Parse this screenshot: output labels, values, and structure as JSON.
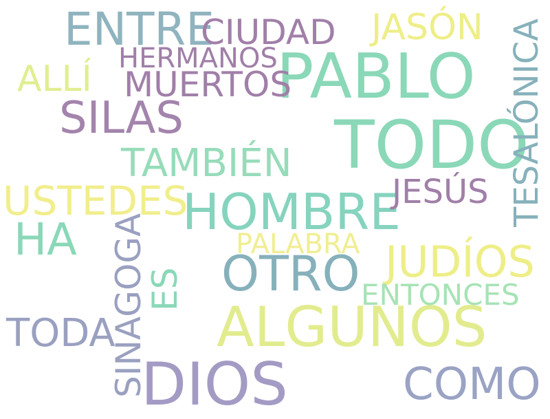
{
  "words": {
    "pablo": "PABLO",
    "todo": "TODO",
    "algunos": "ALGUNOS",
    "dios": "DIOS",
    "entre": "ENTRE",
    "hombre": "HOMBRE",
    "silas": "SILAS",
    "otro": "OTRO",
    "judios": "JUDÍOS",
    "ustedes": "USTEDES",
    "ciudad": "CIUDAD",
    "jason": "JASÓN",
    "como": "COMO",
    "alli": "ALLÍ",
    "tambien": "TAMBIÉN",
    "tesalonica": "TESALÓNICA",
    "ha": "HA",
    "sinagoga": "SINAGOGA",
    "toda": "TODA",
    "muertos": "MUERTOS",
    "jesus": "JESÚS",
    "hermanos": "HERMANOS",
    "entonces": "ENTONCES",
    "es": "ES",
    "palabra": "PALABRA"
  },
  "palette": {
    "green": "#8ad8b8",
    "purple": "#a07fa8",
    "teal": "#86b1bb",
    "yellow": "#eeee88",
    "lime": "#dde98c",
    "slate": "#9aa0c0",
    "lavender": "#a49bc4",
    "mint": "#a6e3b4"
  }
}
